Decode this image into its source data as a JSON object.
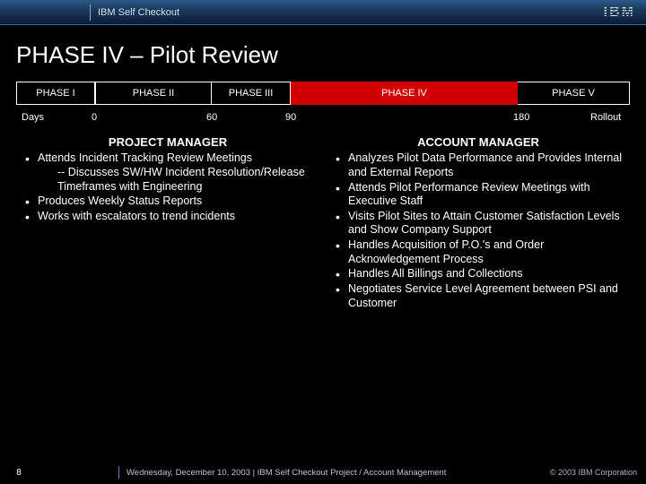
{
  "header": {
    "product": "IBM Self Checkout",
    "logo_text": "IBM"
  },
  "title": "PHASE IV – Pilot Review",
  "timeline": {
    "phases": [
      {
        "label": "PHASE I",
        "active": false
      },
      {
        "label": "PHASE II",
        "active": false
      },
      {
        "label": "PHASE III",
        "active": false
      },
      {
        "label": "PHASE IV",
        "active": true
      },
      {
        "label": "PHASE V",
        "active": false
      }
    ],
    "days_label": "Days",
    "markers": {
      "d0": "0",
      "d60": "60",
      "d90": "90",
      "d180": "180",
      "rollout": "Rollout"
    },
    "active_color": "#d00000",
    "border_color": "#ffffff",
    "bg_color": "#000000"
  },
  "left": {
    "heading": "PROJECT MANAGER",
    "items": [
      "Attends Incident Tracking Review Meetings",
      "Produces Weekly Status Reports",
      "Works with escalators to trend incidents"
    ],
    "sub_after_first": "-- Discusses SW/HW  Incident Resolution/Release Timeframes with Engineering"
  },
  "right": {
    "heading": "ACCOUNT MANAGER",
    "items": [
      "Analyzes Pilot Data Performance and Provides Internal and External Reports",
      "Attends Pilot Performance Review Meetings with Executive Staff",
      "Visits Pilot Sites to Attain Customer Satisfaction Levels and Show Company Support",
      "Handles Acquisition of P.O.'s and Order Acknowledgement Process",
      "Handles All Billings and Collections",
      "Negotiates Service Level Agreement between PSI and Customer"
    ]
  },
  "footer": {
    "page": "8",
    "text": "Wednesday, December 10, 2003  |  IBM Self Checkout Project / Account Management",
    "copyright": "© 2003 IBM Corporation"
  }
}
